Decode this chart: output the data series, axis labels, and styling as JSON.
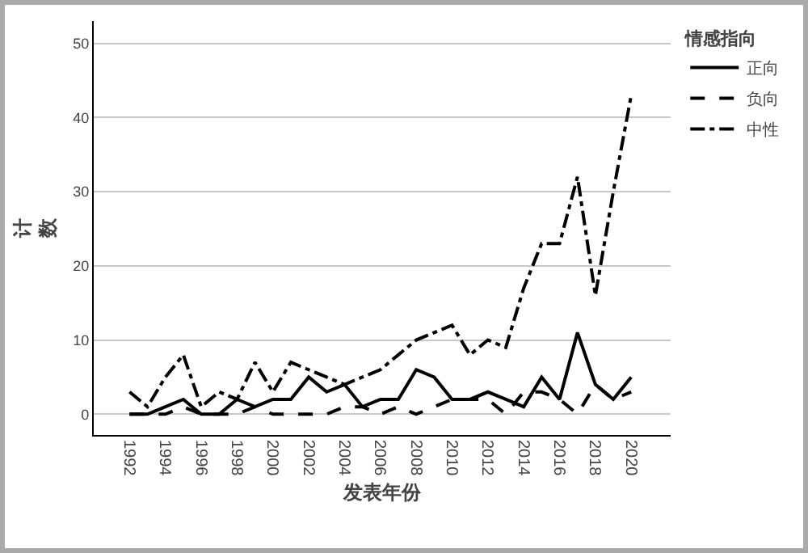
{
  "chart_data": {
    "type": "line",
    "xlabel": "发表年份",
    "ylabel": "计数",
    "legend_title": "情感指向",
    "legend": "top right",
    "grid": "y",
    "x": [
      1992,
      1993,
      1994,
      1995,
      1996,
      1997,
      1998,
      1999,
      2000,
      2001,
      2002,
      2003,
      2004,
      2005,
      2006,
      2007,
      2008,
      2009,
      2010,
      2011,
      2012,
      2013,
      2014,
      2015,
      2016,
      2017,
      2018,
      2019,
      2020
    ],
    "xlim": [
      1990,
      2022.2
    ],
    "xticks": [
      1992,
      1994,
      1996,
      1998,
      2000,
      2002,
      2004,
      2006,
      2008,
      2010,
      2012,
      2014,
      2016,
      2018,
      2020
    ],
    "ylim": [
      -2.8,
      53
    ],
    "yticks": [
      0,
      10,
      20,
      30,
      40,
      50
    ],
    "series": [
      {
        "name": "正向",
        "color": "#000000",
        "line_style": "solid",
        "values": [
          0,
          0,
          1,
          2,
          0,
          0,
          2,
          1,
          2,
          2,
          5,
          3,
          4,
          1,
          2,
          2,
          6,
          5,
          2,
          2,
          3,
          2,
          1,
          5,
          2,
          11,
          4,
          2,
          5
        ]
      },
      {
        "name": "负向",
        "color": "#000000",
        "line_style": "dashed",
        "values": [
          0,
          0,
          0,
          1,
          0,
          0,
          0,
          1,
          0,
          0,
          0,
          0,
          1,
          1,
          0,
          1,
          0,
          1,
          2,
          2,
          2,
          0,
          3,
          3,
          2,
          0,
          4,
          2,
          3
        ]
      },
      {
        "name": "中性",
        "color": "#000000",
        "line_style": "dashdot",
        "values": [
          3,
          1,
          5,
          8,
          1,
          3,
          2,
          7,
          3,
          7,
          6,
          5,
          4,
          5,
          6,
          8,
          10,
          11,
          12,
          8,
          10,
          9,
          17,
          23,
          23,
          32,
          16,
          30,
          43
        ]
      }
    ]
  }
}
